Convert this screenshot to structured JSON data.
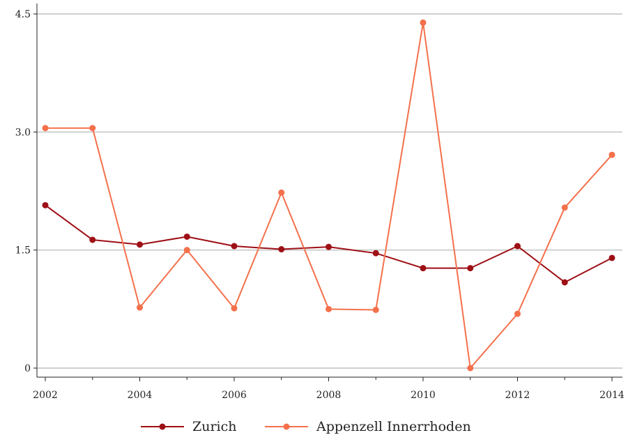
{
  "chart_data": {
    "type": "line",
    "title": "",
    "xlabel": "",
    "ylabel": "",
    "x": [
      2002,
      2003,
      2004,
      2005,
      2006,
      2007,
      2008,
      2009,
      2010,
      2011,
      2012,
      2013,
      2014
    ],
    "x_ticks": [
      "2002",
      "2004",
      "2006",
      "2008",
      "2010",
      "2012",
      "2014"
    ],
    "y_ticks": [
      "0",
      "1.5",
      "3.0",
      "4.5"
    ],
    "xlim": [
      2002,
      2014
    ],
    "ylim": [
      0,
      4.5
    ],
    "grid": "horizontal",
    "legend_position": "bottom",
    "series": [
      {
        "name": "Zurich",
        "color": "#9e0f16",
        "values": [
          2.07,
          1.63,
          1.57,
          1.67,
          1.55,
          1.51,
          1.54,
          1.46,
          1.27,
          1.27,
          1.55,
          1.09,
          1.4
        ]
      },
      {
        "name": "Appenzell Innerrhoden",
        "color": "#f4704b",
        "values": [
          3.05,
          3.05,
          0.77,
          1.5,
          0.76,
          2.23,
          0.75,
          0.74,
          4.39,
          0.0,
          0.69,
          2.04,
          2.71
        ]
      }
    ]
  }
}
